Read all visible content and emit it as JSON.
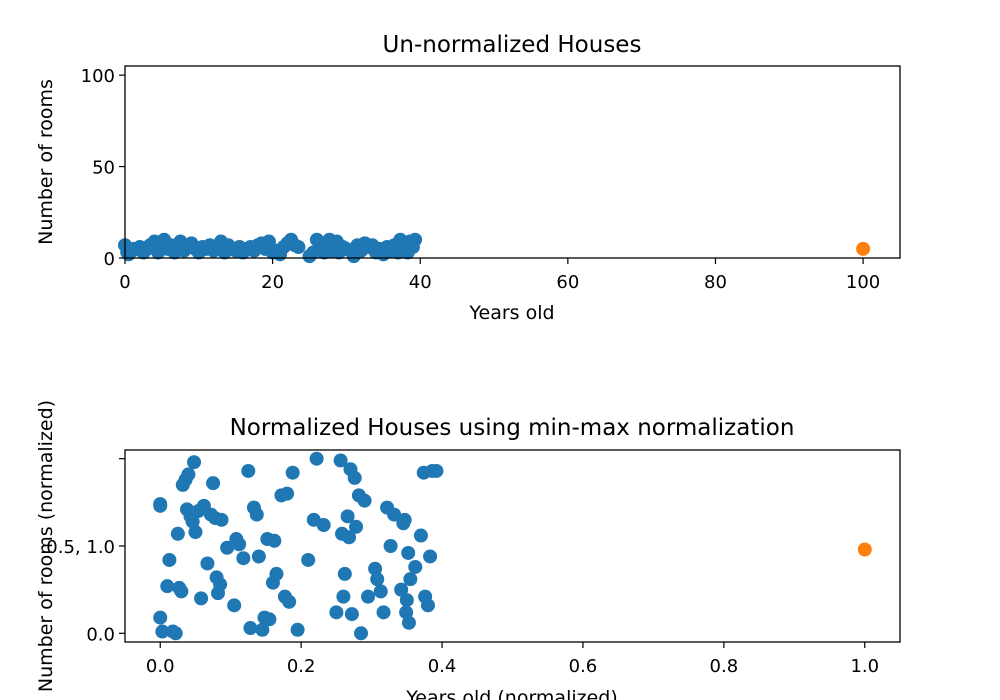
{
  "chart_data": [
    {
      "type": "scatter",
      "title": "Un-normalized Houses",
      "xlabel": "Years old",
      "ylabel": "Number of rooms",
      "xlim": [
        0,
        105
      ],
      "ylim": [
        0,
        105
      ],
      "xticks": [
        0,
        20,
        40,
        60,
        80,
        100
      ],
      "yticks": [
        0,
        50,
        100
      ],
      "xtick_labels": [
        "0",
        "20",
        "40",
        "60",
        "80",
        "100"
      ],
      "ytick_labels": [
        "0",
        "50",
        "100"
      ],
      "grid": false,
      "series": [
        {
          "color": "#1f77b4",
          "points": [
            [
              0.0,
              7
            ],
            [
              0.3,
              3
            ],
            [
              0.5,
              2
            ],
            [
              1,
              4
            ],
            [
              1.2,
              5
            ],
            [
              2,
              6
            ],
            [
              2.5,
              3
            ],
            [
              3,
              5
            ],
            [
              3.4,
              7
            ],
            [
              4,
              9
            ],
            [
              4.5,
              3
            ],
            [
              5,
              8
            ],
            [
              5.3,
              10
            ],
            [
              5.8,
              5
            ],
            [
              6.2,
              7
            ],
            [
              6.7,
              3
            ],
            [
              7,
              6
            ],
            [
              7.5,
              9
            ],
            [
              8,
              4
            ],
            [
              8.5,
              6
            ],
            [
              9,
              8
            ],
            [
              9.5,
              5
            ],
            [
              10,
              3
            ],
            [
              10.5,
              6
            ],
            [
              11,
              5
            ],
            [
              11.5,
              7
            ],
            [
              12,
              4
            ],
            [
              12.5,
              6
            ],
            [
              13,
              9
            ],
            [
              13.5,
              3
            ],
            [
              14,
              7
            ],
            [
              14.5,
              5
            ],
            [
              15,
              4
            ],
            [
              15.5,
              6
            ],
            [
              16,
              3
            ],
            [
              16.5,
              5
            ],
            [
              17,
              6
            ],
            [
              17.5,
              4
            ],
            [
              18,
              7
            ],
            [
              18.5,
              8
            ],
            [
              19,
              5
            ],
            [
              19.5,
              9
            ],
            [
              20,
              3
            ],
            [
              20.5,
              4
            ],
            [
              21,
              2
            ],
            [
              21.5,
              6
            ],
            [
              22,
              8
            ],
            [
              22.5,
              10
            ],
            [
              23,
              7
            ],
            [
              23.5,
              6
            ],
            [
              25,
              1
            ],
            [
              25.5,
              3
            ],
            [
              26,
              10
            ],
            [
              26.3,
              5
            ],
            [
              26.7,
              7
            ],
            [
              27,
              3
            ],
            [
              27.3,
              8
            ],
            [
              27.7,
              10
            ],
            [
              28,
              4
            ],
            [
              28.3,
              7
            ],
            [
              28.7,
              9
            ],
            [
              29,
              3
            ],
            [
              29.5,
              6
            ],
            [
              30,
              5
            ],
            [
              30.5,
              4
            ],
            [
              31,
              1
            ],
            [
              31.5,
              7
            ],
            [
              32,
              4
            ],
            [
              32.5,
              8
            ],
            [
              33,
              6
            ],
            [
              33.5,
              7
            ],
            [
              34,
              3
            ],
            [
              34.5,
              5
            ],
            [
              35,
              2
            ],
            [
              35.5,
              6
            ],
            [
              36,
              4
            ],
            [
              36.5,
              7
            ],
            [
              37,
              3
            ],
            [
              37.3,
              10
            ],
            [
              37.6,
              5
            ],
            [
              38,
              8
            ],
            [
              38.3,
              3
            ],
            [
              38.6,
              9
            ],
            [
              39,
              6
            ],
            [
              39.3,
              10
            ]
          ]
        },
        {
          "color": "#ff7f0e",
          "points": [
            [
              100,
              5
            ]
          ]
        }
      ]
    },
    {
      "type": "scatter",
      "title": "Normalized Houses using min-max normalization",
      "xlabel": "Years old (normalized)",
      "ylabel": "Number of rooms (normalized)",
      "xlim": [
        -0.05,
        1.05
      ],
      "ylim": [
        -0.05,
        1.05
      ],
      "xticks": [
        0.0,
        0.2,
        0.4,
        0.6,
        0.8,
        1.0
      ],
      "yticks": [
        0.0,
        0.5,
        1.0
      ],
      "xtick_labels": [
        "0.0",
        "0.2",
        "0.4",
        "0.6",
        "0.8",
        "1.0"
      ],
      "ytick_labels": [
        "0.0",
        "0.5, 1.0"
      ],
      "grid": false,
      "series": [
        {
          "color": "#1f77b4",
          "points": [
            [
              0.0,
              0.74
            ],
            [
              0.0,
              0.73
            ],
            [
              0.0,
              0.09
            ],
            [
              0.003,
              0.01
            ],
            [
              0.01,
              0.27
            ],
            [
              0.013,
              0.42
            ],
            [
              0.018,
              0.01
            ],
            [
              0.022,
              0.0
            ],
            [
              0.025,
              0.57
            ],
            [
              0.027,
              0.26
            ],
            [
              0.03,
              0.24
            ],
            [
              0.032,
              0.85
            ],
            [
              0.036,
              0.88
            ],
            [
              0.038,
              0.71
            ],
            [
              0.04,
              0.91
            ],
            [
              0.043,
              0.67
            ],
            [
              0.046,
              0.64
            ],
            [
              0.048,
              0.98
            ],
            [
              0.05,
              0.58
            ],
            [
              0.054,
              0.7
            ],
            [
              0.058,
              0.2
            ],
            [
              0.062,
              0.73
            ],
            [
              0.067,
              0.4
            ],
            [
              0.072,
              0.68
            ],
            [
              0.075,
              0.86
            ],
            [
              0.078,
              0.66
            ],
            [
              0.08,
              0.32
            ],
            [
              0.082,
              0.23
            ],
            [
              0.085,
              0.28
            ],
            [
              0.087,
              0.65
            ],
            [
              0.095,
              0.49
            ],
            [
              0.105,
              0.16
            ],
            [
              0.108,
              0.54
            ],
            [
              0.112,
              0.51
            ],
            [
              0.118,
              0.43
            ],
            [
              0.125,
              0.93
            ],
            [
              0.128,
              0.03
            ],
            [
              0.133,
              0.72
            ],
            [
              0.137,
              0.68
            ],
            [
              0.14,
              0.44
            ],
            [
              0.145,
              0.02
            ],
            [
              0.148,
              0.09
            ],
            [
              0.152,
              0.54
            ],
            [
              0.155,
              0.08
            ],
            [
              0.16,
              0.29
            ],
            [
              0.162,
              0.53
            ],
            [
              0.165,
              0.34
            ],
            [
              0.172,
              0.79
            ],
            [
              0.177,
              0.21
            ],
            [
              0.18,
              0.8
            ],
            [
              0.183,
              0.18
            ],
            [
              0.188,
              0.92
            ],
            [
              0.195,
              0.02
            ],
            [
              0.21,
              0.42
            ],
            [
              0.218,
              0.65
            ],
            [
              0.222,
              1.0
            ],
            [
              0.232,
              0.62
            ],
            [
              0.25,
              0.12
            ],
            [
              0.256,
              0.99
            ],
            [
              0.258,
              0.57
            ],
            [
              0.26,
              0.21
            ],
            [
              0.262,
              0.34
            ],
            [
              0.266,
              0.67
            ],
            [
              0.268,
              0.55
            ],
            [
              0.27,
              0.94
            ],
            [
              0.272,
              0.11
            ],
            [
              0.276,
              0.89
            ],
            [
              0.278,
              0.61
            ],
            [
              0.282,
              0.79
            ],
            [
              0.285,
              0.0
            ],
            [
              0.29,
              0.76
            ],
            [
              0.295,
              0.21
            ],
            [
              0.305,
              0.37
            ],
            [
              0.308,
              0.31
            ],
            [
              0.313,
              0.24
            ],
            [
              0.317,
              0.12
            ],
            [
              0.322,
              0.72
            ],
            [
              0.327,
              0.5
            ],
            [
              0.332,
              0.68
            ],
            [
              0.342,
              0.25
            ],
            [
              0.345,
              0.63
            ],
            [
              0.347,
              0.65
            ],
            [
              0.349,
              0.12
            ],
            [
              0.35,
              0.19
            ],
            [
              0.352,
              0.46
            ],
            [
              0.353,
              0.06
            ],
            [
              0.355,
              0.31
            ],
            [
              0.362,
              0.38
            ],
            [
              0.37,
              0.56
            ],
            [
              0.374,
              0.92
            ],
            [
              0.376,
              0.21
            ],
            [
              0.38,
              0.16
            ],
            [
              0.383,
              0.44
            ],
            [
              0.386,
              0.93
            ],
            [
              0.392,
              0.93
            ]
          ]
        },
        {
          "color": "#ff7f0e",
          "points": [
            [
              1.0,
              0.48
            ]
          ]
        }
      ]
    }
  ]
}
